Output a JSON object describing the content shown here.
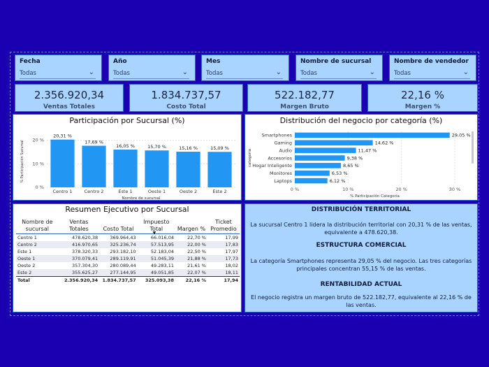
{
  "slicers": [
    {
      "label": "Fecha",
      "value": "Todas"
    },
    {
      "label": "Año",
      "value": "Todas"
    },
    {
      "label": "Mes",
      "value": "Todas"
    },
    {
      "label": "Nombre de sucursal",
      "value": "Todas"
    },
    {
      "label": "Nombre de vendedor",
      "value": "Todas"
    }
  ],
  "kpis": [
    {
      "value": "2.356.920,34",
      "caption": "Ventas Totales"
    },
    {
      "value": "1.834.737,57",
      "caption": "Costo Total"
    },
    {
      "value": "522.182,77",
      "caption": "Margen Bruto"
    },
    {
      "value": "22,16 %",
      "caption": "Margen %"
    }
  ],
  "chart_data": [
    {
      "type": "bar",
      "title": "Participación por Sucursal (%)",
      "xlabel": "Nombre de sucursal",
      "ylabel": "% Participación Sucursal",
      "categories": [
        "Centro 1",
        "Centro 2",
        "Este 1",
        "Oeste 1",
        "Oeste 2",
        "Este 2"
      ],
      "values": [
        20.31,
        17.69,
        16.05,
        15.7,
        15.16,
        15.09
      ],
      "data_labels": [
        "20,31 %",
        "17,69 %",
        "16,05 %",
        "15,70 %",
        "15,16 %",
        "15,09 %"
      ],
      "y_ticks": [
        "0 %",
        "10 %",
        "20 %"
      ],
      "ylim": [
        0,
        22
      ],
      "color": "#2196f3"
    },
    {
      "type": "bar",
      "orientation": "horizontal",
      "title": "Distribución del negocio por categoría (%)",
      "xlabel": "% Participación Categoría",
      "ylabel": "categoría",
      "categories": [
        "Smartphones",
        "Gaming",
        "Audio",
        "Accesorios",
        "Hogar Inteligente",
        "Monitores",
        "Laptops"
      ],
      "values": [
        29.05,
        14.62,
        11.47,
        9.38,
        8.65,
        6.53,
        6.12
      ],
      "data_labels": [
        "29,05 %",
        "14,62 %",
        "11,47 %",
        "9,38 %",
        "8,65 %",
        "6,53 %",
        "6,12 %"
      ],
      "x_ticks": [
        "0 %",
        "10 %",
        "20 %",
        "30 %"
      ],
      "xlim": [
        0,
        30
      ],
      "color": "#2196f3"
    }
  ],
  "summary": {
    "title": "Resumen Ejecutivo por Sucursal",
    "columns": [
      "Nombre de sucursal",
      "Ventas Totales",
      "Costo Total",
      "Impuesto Total",
      "Margen %",
      "Ticket Promedio"
    ],
    "rows": [
      [
        "Centro 1",
        "478.620,38",
        "369.964,43",
        "66.016,04",
        "22,70 %",
        "17,99"
      ],
      [
        "Centro 2",
        "416.970,65",
        "325.236,74",
        "57.513,95",
        "22,00 %",
        "17,83"
      ],
      [
        "Este 1",
        "378.320,33",
        "293.182,10",
        "52.183,04",
        "22,50 %",
        "17,97"
      ],
      [
        "Oeste 1",
        "370.079,41",
        "289.119,91",
        "51.045,39",
        "21,88 %",
        "17,73"
      ],
      [
        "Oeste 2",
        "357.304,30",
        "280.089,44",
        "49.283,11",
        "21,61 %",
        "18,02"
      ],
      [
        "Este 2",
        "355.625,27",
        "277.144,95",
        "49.051,85",
        "22,07 %",
        "18,11"
      ]
    ],
    "total": [
      "Total",
      "2.356.920,34",
      "1.834.737,57",
      "325.093,38",
      "22,16 %",
      "17,94"
    ]
  },
  "insights": [
    {
      "heading": "DISTRIBUCIÓN TERRITORIAL",
      "text": "La sucursal Centro 1 lidera la distribución territorial con 20,31 % de las ventas, equivalente a 478.620,38."
    },
    {
      "heading": "ESTRUCTURA COMERCIAL",
      "text": "La categoría Smartphones representa 29,05 % del negocio. Las tres categorías principales concentran 55,15 % de las ventas."
    },
    {
      "heading": "RENTABILIDAD ACTUAL",
      "text": "El negocio registra un margen bruto de 522.182,77, equivalente al 22,16 % de las ventas."
    }
  ]
}
